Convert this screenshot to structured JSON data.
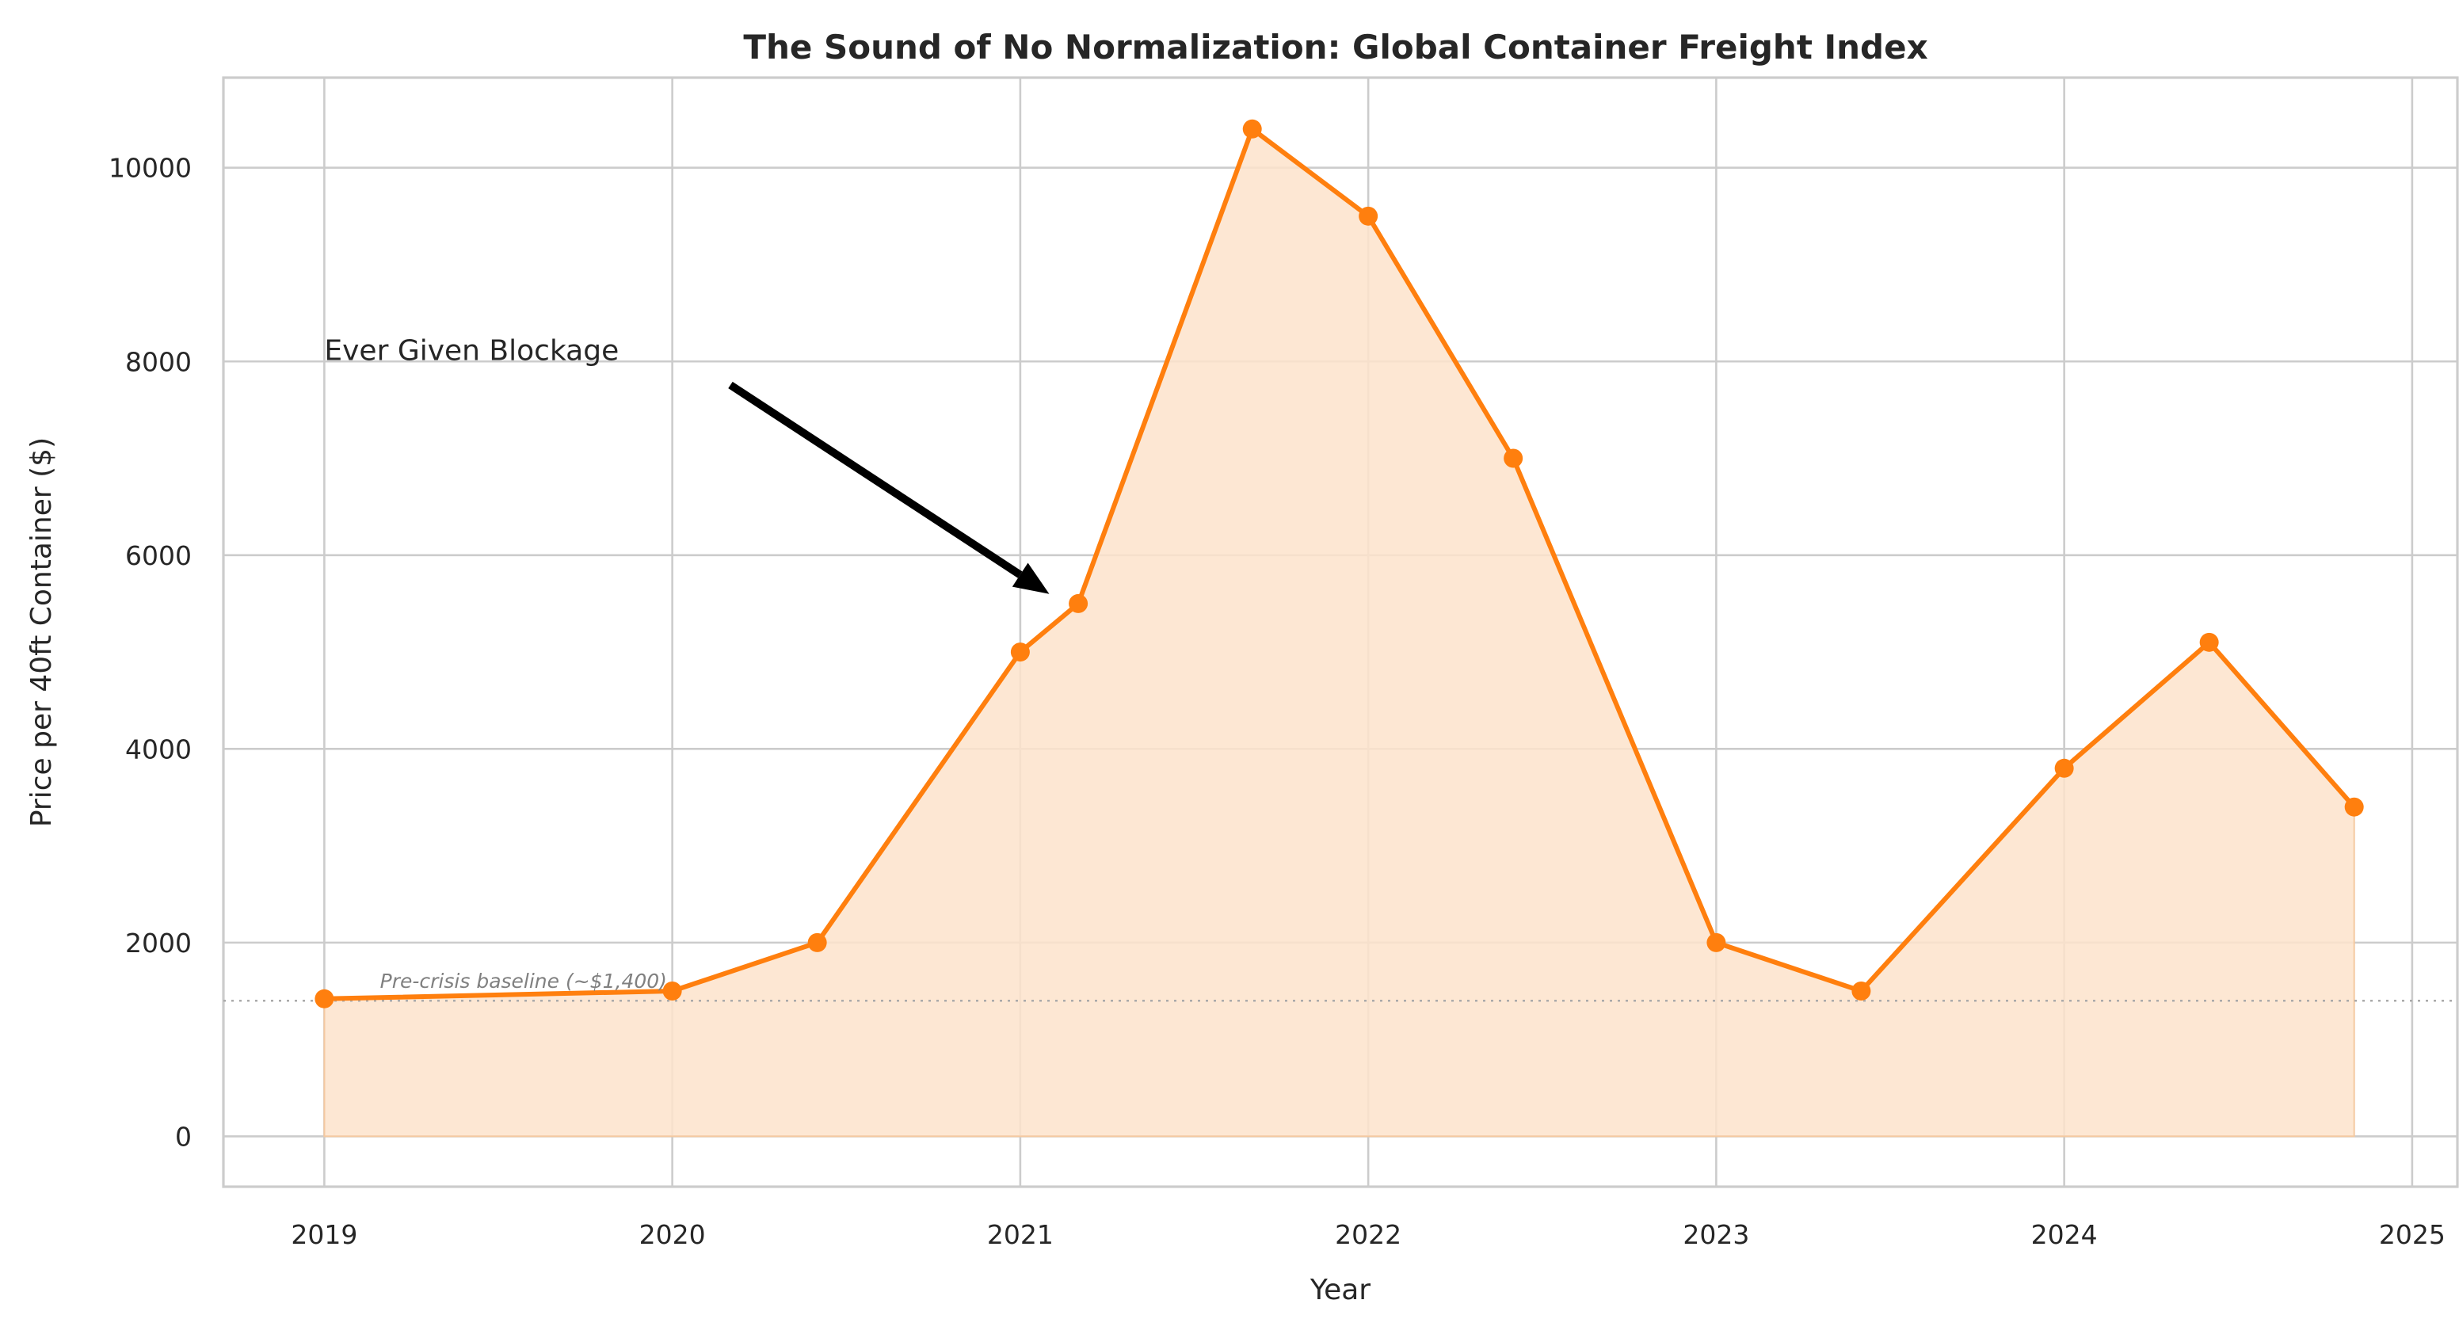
{
  "chart_data": {
    "type": "area",
    "title": "The Sound of No Normalization: Global Container Freight Index",
    "xlabel": "Year",
    "ylabel": "Price per 40ft Container ($)",
    "x": [
      "2019-01",
      "2020-01",
      "2020-06",
      "2021-01",
      "2021-03",
      "2021-09",
      "2022-01",
      "2022-06",
      "2023-01",
      "2023-06",
      "2024-01",
      "2024-06",
      "2024-11"
    ],
    "values": [
      1420,
      1500,
      2000,
      5000,
      5500,
      10400,
      9500,
      7000,
      2000,
      1500,
      3800,
      5100,
      3400
    ],
    "xlim": [
      2018.71,
      2025.13
    ],
    "ylim": [
      -520,
      10930
    ],
    "xticks": [
      "2019",
      "2020",
      "2021",
      "2022",
      "2023",
      "2024",
      "2025"
    ],
    "yticks": [
      "0",
      "2000",
      "4000",
      "6000",
      "8000",
      "10000"
    ],
    "grid": true,
    "line_color": "#ff7f0e",
    "fill_color": "#fde3cb",
    "baseline": {
      "value": 1400,
      "label": "Pre-crisis baseline (~$1,400)",
      "color": "#aaaaaa"
    },
    "annotation": {
      "text": "Ever Given Blockage",
      "text_x": "2019-01",
      "text_y": 8000,
      "target_x": "2021-02",
      "target_y": 5600
    }
  }
}
